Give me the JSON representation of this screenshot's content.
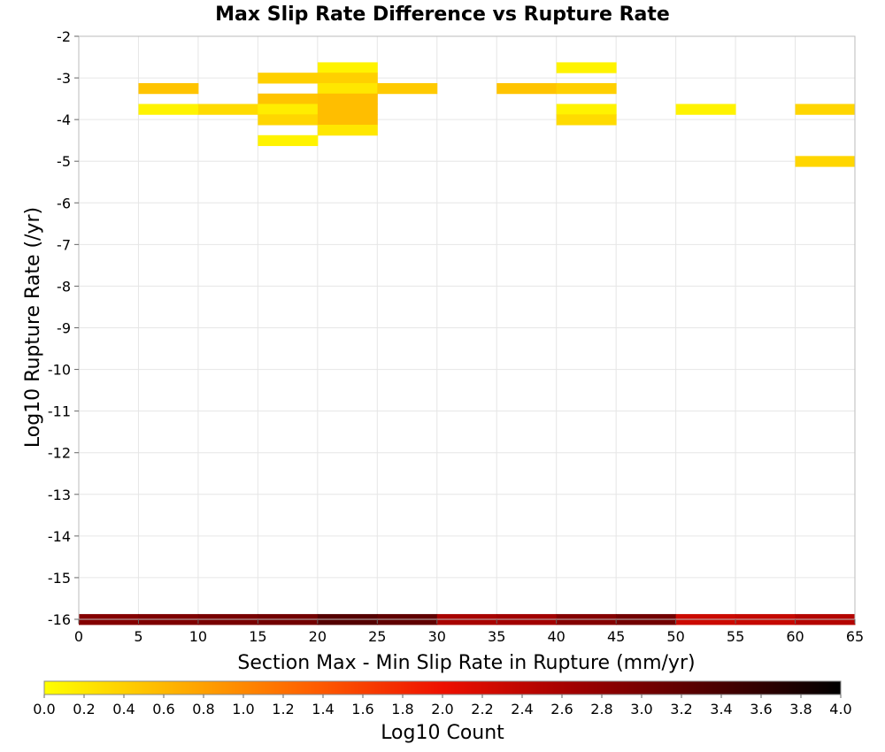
{
  "chart_data": {
    "type": "heatmap",
    "title": "Max Slip Rate Difference vs Rupture Rate",
    "xlabel": "Section Max - Min Slip Rate in Rupture (mm/yr)",
    "ylabel": "Log10 Rupture Rate (/yr)",
    "xlim": [
      0,
      65
    ],
    "ylim": [
      -16,
      -2
    ],
    "x_ticks": [
      "0",
      "5",
      "10",
      "15",
      "20",
      "25",
      "30",
      "35",
      "40",
      "45",
      "50",
      "55",
      "60",
      "65"
    ],
    "y_ticks": [
      "-2",
      "-3",
      "-4",
      "-5",
      "-6",
      "-7",
      "-8",
      "-9",
      "-10",
      "-11",
      "-12",
      "-13",
      "-14",
      "-15",
      "-16"
    ],
    "grid": true,
    "colorbar": {
      "label": "Log10 Count",
      "range": [
        0,
        4
      ],
      "ticks": [
        "0.0",
        "0.2",
        "0.4",
        "0.6",
        "0.8",
        "1.0",
        "1.2",
        "1.4",
        "1.6",
        "1.8",
        "2.0",
        "2.2",
        "2.4",
        "2.6",
        "2.8",
        "3.0",
        "3.2",
        "3.4",
        "3.6",
        "3.8",
        "4.0"
      ],
      "colors": [
        "#ffff00",
        "#ffb000",
        "#ff6000",
        "#ee1000",
        "#a00000",
        "#500000",
        "#000000"
      ]
    },
    "cells": [
      {
        "x": 20,
        "y": -2.75,
        "v": 0.1
      },
      {
        "x": 40,
        "y": -2.75,
        "v": 0.1
      },
      {
        "x": 15,
        "y": -3.0,
        "v": 0.4
      },
      {
        "x": 20,
        "y": -3.0,
        "v": 0.4
      },
      {
        "x": 5,
        "y": -3.25,
        "v": 0.5
      },
      {
        "x": 20,
        "y": -3.25,
        "v": 0.2
      },
      {
        "x": 25,
        "y": -3.25,
        "v": 0.45
      },
      {
        "x": 35,
        "y": -3.25,
        "v": 0.5
      },
      {
        "x": 40,
        "y": -3.25,
        "v": 0.4
      },
      {
        "x": 15,
        "y": -3.5,
        "v": 0.5
      },
      {
        "x": 20,
        "y": -3.5,
        "v": 0.55
      },
      {
        "x": 5,
        "y": -3.75,
        "v": 0.1
      },
      {
        "x": 10,
        "y": -3.75,
        "v": 0.3
      },
      {
        "x": 15,
        "y": -3.75,
        "v": 0.15
      },
      {
        "x": 20,
        "y": -3.75,
        "v": 0.55
      },
      {
        "x": 40,
        "y": -3.75,
        "v": 0.1
      },
      {
        "x": 50,
        "y": -3.75,
        "v": 0.1
      },
      {
        "x": 60,
        "y": -3.75,
        "v": 0.35
      },
      {
        "x": 15,
        "y": -4.0,
        "v": 0.35
      },
      {
        "x": 20,
        "y": -4.0,
        "v": 0.55
      },
      {
        "x": 40,
        "y": -4.0,
        "v": 0.3
      },
      {
        "x": 20,
        "y": -4.25,
        "v": 0.2
      },
      {
        "x": 15,
        "y": -4.5,
        "v": 0.1
      },
      {
        "x": 60,
        "y": -5.0,
        "v": 0.35
      },
      {
        "x": 0,
        "y": -16.0,
        "v": 2.9
      },
      {
        "x": 5,
        "y": -16.0,
        "v": 2.95
      },
      {
        "x": 10,
        "y": -16.0,
        "v": 3.0
      },
      {
        "x": 15,
        "y": -16.0,
        "v": 3.05
      },
      {
        "x": 20,
        "y": -16.0,
        "v": 3.3
      },
      {
        "x": 25,
        "y": -16.0,
        "v": 3.2
      },
      {
        "x": 30,
        "y": -16.0,
        "v": 2.6
      },
      {
        "x": 35,
        "y": -16.0,
        "v": 2.65
      },
      {
        "x": 40,
        "y": -16.0,
        "v": 2.9
      },
      {
        "x": 45,
        "y": -16.0,
        "v": 3.05
      },
      {
        "x": 50,
        "y": -16.0,
        "v": 2.3
      },
      {
        "x": 55,
        "y": -16.0,
        "v": 2.35
      },
      {
        "x": 60,
        "y": -16.0,
        "v": 2.5
      }
    ]
  }
}
